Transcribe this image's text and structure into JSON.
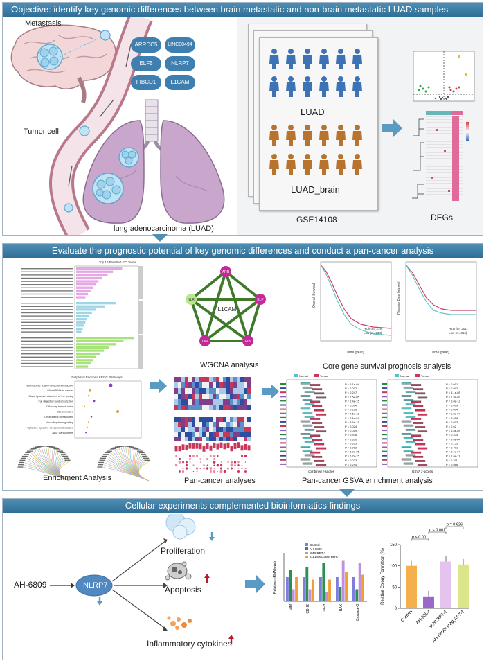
{
  "panel1": {
    "title": "Objective: identify key genomic differences between brain metastatic and non-brain metastatic LUAD samples",
    "metastasis_label": "Metastasis",
    "tumor_cell_label": "Tumor cell",
    "luad_full_label": "lung adenocarcinoma (LUAD)",
    "genes": [
      "ARRDC5",
      "LINC00494",
      "ELF5",
      "NLRP7",
      "FIBCD1",
      "L1CAM"
    ],
    "group_luad": "LUAD",
    "group_luad_brain": "LUAD_brain",
    "dataset": "GSE14108",
    "degs_label": "DEGs"
  },
  "panel2": {
    "title": "Evaluate the prognostic potential of key genomic differences and conduct a pan-cancer analysis",
    "enrichment_label": "Enrichment Analysis",
    "wgcna_label": "WGCNA analysis",
    "wgcna_center": "L1CAM",
    "wgcna_nodes": [
      "ARR",
      "ELF",
      "FIB",
      "LIN",
      "NLR"
    ],
    "survival_label": "Core gene survival prognosis analysis",
    "pancancer_label": "Pan-cancer analyses",
    "gsva_label": "Pan-cancer GSVA enrichment analysis",
    "go_title": "Top 10 Enriched GO Terms",
    "kegg_title": "Dotplot of Enriched KEGG Pathways",
    "kegg_terms": [
      "Neuroactive ligand-receptor interaction",
      "MicroRNAs in cancer",
      "Maturity onset diabetes of the young",
      "Fat digestion and absorption",
      "Olfactory transduction",
      "Bile secretion",
      "Cholesterol metabolism",
      "Neurotrophin signaling",
      "Cytokine-cytokine receptor interaction",
      "ABC transporters"
    ],
    "km1": {
      "ylab": "Overall Survival",
      "xlab": "Time (year)",
      "high": "High (n= 279)",
      "low": "Low  (n= 238)"
    },
    "km2": {
      "ylab": "Disease Free Interval",
      "xlab": "Time (year)",
      "high": "High (n= 201)",
      "low": "Low  (n= 316)"
    },
    "gsva_pvals_left": [
      "P = 5.1e-04",
      "P = 0.002",
      "P = 0.247",
      "P = 2.6e-05",
      "P = 2.4e-15",
      "P = 0.004",
      "P = 0.196",
      "P = 7.5e-11",
      "P = 2.1e-09",
      "P = 9.6e-15",
      "P = 0.024",
      "P = 0.009",
      "P = 0.976",
      "P = 0.310",
      "P = 0.333",
      "P = 0.002",
      "P = 5.9e-05",
      "P = 6.7e-15",
      "P = 0.023",
      "P = 0.244"
    ],
    "gsva_pvals_right": [
      "P = 0.001",
      "P = 0.002",
      "P = 4.1e-05",
      "P = 1.9e-09",
      "P = 6.0e-12",
      "P = 0.009",
      "P = 0.004",
      "P = 1.8e-07",
      "P = 0.316",
      "P = 0.003",
      "P = 0.02",
      "P = 6.8e-04",
      "P = 0.434",
      "P = 9.4e-04",
      "P = 0.155",
      "P = 0.791",
      "P = 2.4e-04",
      "P = 1.6e-11",
      "P = 0.311",
      "P = 0.086"
    ],
    "gsva_xlab_left": "combined z-scores",
    "gsva_xlab_right": "GSVA z-scores",
    "legend_normal": "Normal",
    "legend_tumor": "Tumor"
  },
  "panel3": {
    "title": "Cellular experiments complemented bioinformatics findings",
    "drug": "AH-6809",
    "gene": "NLRP7",
    "proliferation": "Proliferation",
    "apoptosis": "Apoptosis",
    "inflammatory": "Inflammatory cytokines",
    "ylab_rna": "Relative mRNA levels",
    "bar_groups": [
      "VIM",
      "CDH2",
      "TNFα",
      "BAX",
      "Caspase-3"
    ],
    "bar_legend": [
      "Control",
      "AH-6809",
      "shNLRP7-1",
      "AH-6809+shNLRP7-1"
    ],
    "colony_ylab": "Relative Colony Formation (%)",
    "colony_categories": [
      "Control",
      "AH-6809",
      "shNLRP7-1",
      "AH-6809+shNLRP7-1"
    ],
    "colony_values": [
      100,
      28,
      110,
      103
    ],
    "colony_yticks": [
      "0",
      "50",
      "100",
      "150"
    ],
    "pvals": [
      "p < 0.001",
      "p < 0.001",
      "p = 0.626"
    ]
  },
  "chart_data": [
    {
      "type": "bar",
      "title": "",
      "ylabel": "Relative Colony Formation (%)",
      "categories": [
        "Control",
        "AH-6809",
        "shNLRP7-1",
        "AH-6809+shNLRP7-1"
      ],
      "values": [
        100,
        28,
        110,
        103
      ],
      "ylim": [
        0,
        150
      ]
    },
    {
      "type": "bar",
      "ylabel": "Relative mRNA levels",
      "categories": [
        "VIM",
        "CDH2",
        "TNFα",
        "BAX",
        "Caspase-3"
      ],
      "series": [
        {
          "name": "Control",
          "values": [
            1.0,
            1.0,
            1.0,
            1.0,
            1.0
          ]
        },
        {
          "name": "AH-6809",
          "values": [
            1.3,
            1.4,
            1.6,
            0.6,
            0.5
          ]
        },
        {
          "name": "shNLRP7-1",
          "values": [
            0.5,
            0.5,
            0.4,
            1.7,
            1.6
          ]
        },
        {
          "name": "AH-6809+shNLRP7-1",
          "values": [
            1.0,
            0.9,
            0.9,
            1.2,
            1.1
          ]
        }
      ],
      "ylim": [
        0,
        2
      ]
    }
  ],
  "colors": {
    "header": "#3d7fa8",
    "panel_bg": "#eef0f2",
    "gene_bubble": "#3f7fb0",
    "person_blue": "#3d73b5",
    "person_orange": "#b8732f",
    "arrow": "#5a9bc4",
    "normal": "#5cc0c0",
    "tumor": "#c8375a"
  }
}
